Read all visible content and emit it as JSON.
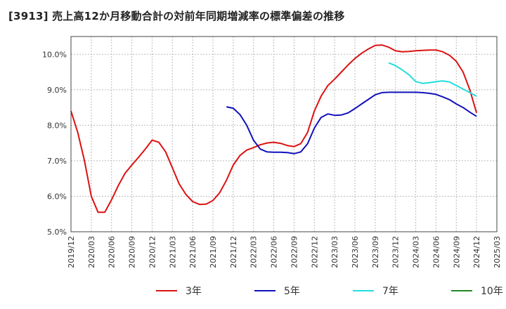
{
  "chart_data": {
    "type": "line",
    "title": "[3913]  売上高12か月移動合計の対前年同期増減率の標準偏差の推移",
    "xlabel": "",
    "ylabel": "",
    "x_ticks": [
      "2019/12",
      "2020/03",
      "2020/06",
      "2020/09",
      "2020/12",
      "2021/03",
      "2021/06",
      "2021/09",
      "2021/12",
      "2022/03",
      "2022/06",
      "2022/09",
      "2022/12",
      "2023/03",
      "2023/06",
      "2023/09",
      "2023/12",
      "2024/03",
      "2024/06",
      "2024/09",
      "2024/12",
      "2025/03"
    ],
    "y_ticks": [
      "5.0%",
      "6.0%",
      "7.0%",
      "8.0%",
      "9.0%",
      "10.0%"
    ],
    "ylim": [
      5.0,
      10.5
    ],
    "grid": true,
    "legend_position": "bottom",
    "series": [
      {
        "name": "3年",
        "color": "#dd1111",
        "points": [
          [
            "2019/12",
            8.4
          ],
          [
            "2020/01",
            7.8
          ],
          [
            "2020/02",
            7.0
          ],
          [
            "2020/03",
            6.0
          ],
          [
            "2020/04",
            5.55
          ],
          [
            "2020/05",
            5.55
          ],
          [
            "2020/06",
            5.9
          ],
          [
            "2020/07",
            6.3
          ],
          [
            "2020/08",
            6.65
          ],
          [
            "2020/09",
            6.88
          ],
          [
            "2020/10",
            7.1
          ],
          [
            "2020/11",
            7.33
          ],
          [
            "2020/12",
            7.58
          ],
          [
            "2021/01",
            7.52
          ],
          [
            "2021/02",
            7.25
          ],
          [
            "2021/03",
            6.8
          ],
          [
            "2021/04",
            6.35
          ],
          [
            "2021/05",
            6.05
          ],
          [
            "2021/06",
            5.85
          ],
          [
            "2021/07",
            5.77
          ],
          [
            "2021/08",
            5.78
          ],
          [
            "2021/09",
            5.88
          ],
          [
            "2021/10",
            6.1
          ],
          [
            "2021/11",
            6.45
          ],
          [
            "2021/12",
            6.88
          ],
          [
            "2022/01",
            7.15
          ],
          [
            "2022/02",
            7.3
          ],
          [
            "2022/03",
            7.37
          ],
          [
            "2022/04",
            7.45
          ],
          [
            "2022/05",
            7.5
          ],
          [
            "2022/06",
            7.52
          ],
          [
            "2022/07",
            7.49
          ],
          [
            "2022/08",
            7.43
          ],
          [
            "2022/09",
            7.4
          ],
          [
            "2022/10",
            7.48
          ],
          [
            "2022/11",
            7.8
          ],
          [
            "2022/12",
            8.4
          ],
          [
            "2023/01",
            8.82
          ],
          [
            "2023/02",
            9.12
          ],
          [
            "2023/03",
            9.3
          ],
          [
            "2023/04",
            9.5
          ],
          [
            "2023/05",
            9.7
          ],
          [
            "2023/06",
            9.88
          ],
          [
            "2023/07",
            10.03
          ],
          [
            "2023/08",
            10.15
          ],
          [
            "2023/09",
            10.25
          ],
          [
            "2023/10",
            10.26
          ],
          [
            "2023/11",
            10.2
          ],
          [
            "2023/12",
            10.1
          ],
          [
            "2024/01",
            10.07
          ],
          [
            "2024/02",
            10.08
          ],
          [
            "2024/03",
            10.1
          ],
          [
            "2024/04",
            10.11
          ],
          [
            "2024/05",
            10.12
          ],
          [
            "2024/06",
            10.12
          ],
          [
            "2024/07",
            10.07
          ],
          [
            "2024/08",
            9.97
          ],
          [
            "2024/09",
            9.8
          ],
          [
            "2024/10",
            9.5
          ],
          [
            "2024/11",
            9.0
          ],
          [
            "2024/12",
            8.35
          ]
        ]
      },
      {
        "name": "5年",
        "color": "#1111bb",
        "points": [
          [
            "2021/11",
            8.52
          ],
          [
            "2021/12",
            8.48
          ],
          [
            "2022/01",
            8.3
          ],
          [
            "2022/02",
            8.0
          ],
          [
            "2022/03",
            7.58
          ],
          [
            "2022/04",
            7.33
          ],
          [
            "2022/05",
            7.25
          ],
          [
            "2022/06",
            7.24
          ],
          [
            "2022/07",
            7.24
          ],
          [
            "2022/08",
            7.23
          ],
          [
            "2022/09",
            7.2
          ],
          [
            "2022/10",
            7.25
          ],
          [
            "2022/11",
            7.48
          ],
          [
            "2022/12",
            7.92
          ],
          [
            "2023/01",
            8.22
          ],
          [
            "2023/02",
            8.32
          ],
          [
            "2023/03",
            8.28
          ],
          [
            "2023/04",
            8.29
          ],
          [
            "2023/05",
            8.35
          ],
          [
            "2023/06",
            8.47
          ],
          [
            "2023/07",
            8.6
          ],
          [
            "2023/08",
            8.73
          ],
          [
            "2023/09",
            8.86
          ],
          [
            "2023/10",
            8.92
          ],
          [
            "2023/11",
            8.93
          ],
          [
            "2023/12",
            8.93
          ],
          [
            "2024/01",
            8.93
          ],
          [
            "2024/02",
            8.93
          ],
          [
            "2024/03",
            8.93
          ],
          [
            "2024/04",
            8.92
          ],
          [
            "2024/05",
            8.9
          ],
          [
            "2024/06",
            8.87
          ],
          [
            "2024/07",
            8.8
          ],
          [
            "2024/08",
            8.72
          ],
          [
            "2024/09",
            8.6
          ],
          [
            "2024/10",
            8.5
          ],
          [
            "2024/11",
            8.37
          ],
          [
            "2024/12",
            8.25
          ]
        ]
      },
      {
        "name": "7年",
        "color": "#22dddd",
        "points": [
          [
            "2023/11",
            9.76
          ],
          [
            "2023/12",
            9.68
          ],
          [
            "2024/01",
            9.56
          ],
          [
            "2024/02",
            9.42
          ],
          [
            "2024/03",
            9.23
          ],
          [
            "2024/04",
            9.18
          ],
          [
            "2024/05",
            9.2
          ],
          [
            "2024/06",
            9.23
          ],
          [
            "2024/07",
            9.25
          ],
          [
            "2024/08",
            9.22
          ],
          [
            "2024/09",
            9.12
          ],
          [
            "2024/10",
            9.02
          ],
          [
            "2024/11",
            8.92
          ],
          [
            "2024/12",
            8.82
          ]
        ]
      },
      {
        "name": "10年",
        "color": "#228822",
        "points": []
      }
    ]
  }
}
